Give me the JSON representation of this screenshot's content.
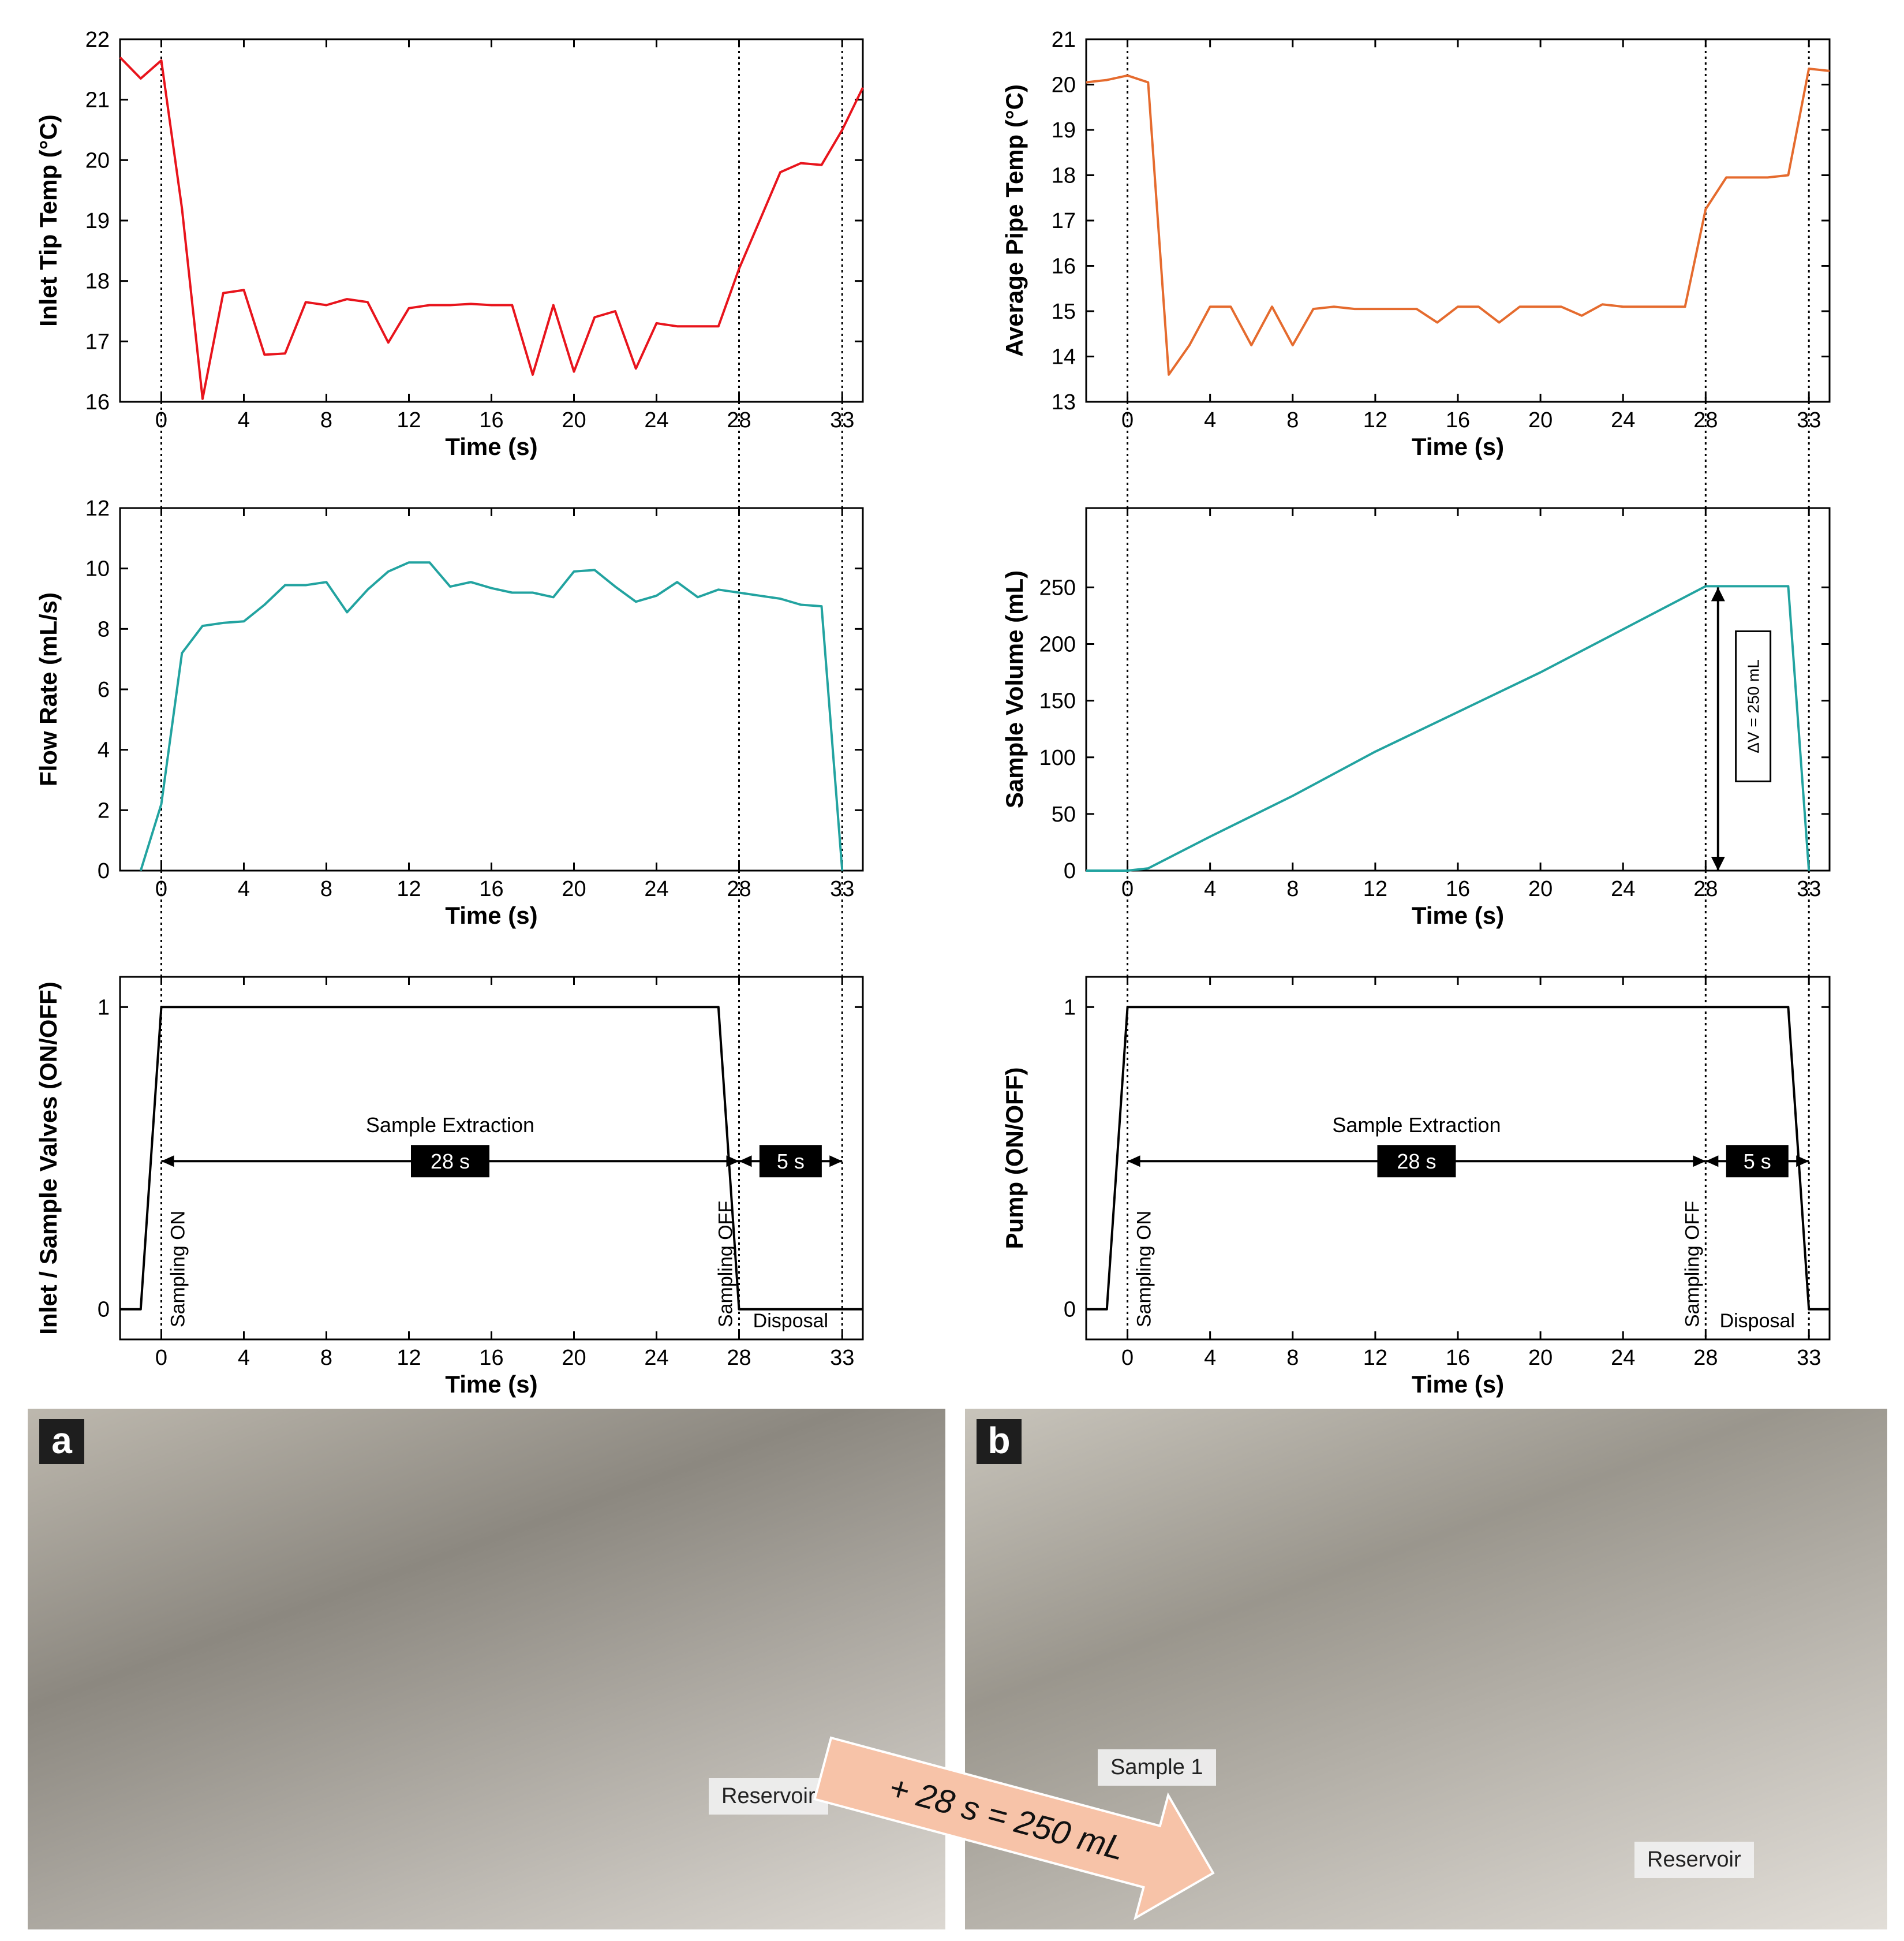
{
  "colors": {
    "inlet_temp": "#e8141c",
    "pipe_temp": "#e56b2e",
    "flow": "#22a3a0",
    "volume": "#22a3a0",
    "valve": "#000000",
    "arrow_fill": "#f7c3a8"
  },
  "chart_data": [
    {
      "id": "inlet-tip-temp",
      "type": "line",
      "xlabel": "Time (s)",
      "ylabel": "Inlet Tip Temp (°C)",
      "xlim": [
        -2,
        34
      ],
      "ylim": [
        16,
        22
      ],
      "xticks": [
        0,
        4,
        8,
        12,
        16,
        20,
        24,
        28,
        33
      ],
      "yticks": [
        16,
        17,
        18,
        19,
        20,
        21,
        22
      ],
      "vlines": [
        0,
        28,
        33
      ],
      "series": [
        {
          "x": [
            -2,
            -1,
            0,
            1,
            2,
            3,
            4,
            5,
            6,
            7,
            8,
            9,
            10,
            11,
            12,
            13,
            14,
            15,
            16,
            17,
            18,
            19,
            20,
            21,
            22,
            23,
            24,
            25,
            26,
            27,
            28,
            29,
            30,
            31,
            32,
            33,
            34
          ],
          "y": [
            21.7,
            21.35,
            21.65,
            19.2,
            16.05,
            17.8,
            17.85,
            16.78,
            16.8,
            17.65,
            17.6,
            17.7,
            17.65,
            16.98,
            17.55,
            17.6,
            17.6,
            17.62,
            17.6,
            17.6,
            16.45,
            17.6,
            16.5,
            17.4,
            17.5,
            16.55,
            17.3,
            17.25,
            17.25,
            17.25,
            18.2,
            19.0,
            19.8,
            19.95,
            19.92,
            20.5,
            21.2
          ]
        }
      ]
    },
    {
      "id": "average-pipe-temp",
      "type": "line",
      "xlabel": "Time (s)",
      "ylabel": "Average Pipe Temp (°C)",
      "xlim": [
        -2,
        34
      ],
      "ylim": [
        13,
        21
      ],
      "xticks": [
        0,
        4,
        8,
        12,
        16,
        20,
        24,
        28,
        33
      ],
      "yticks": [
        13,
        14,
        15,
        16,
        17,
        18,
        19,
        20,
        21
      ],
      "vlines": [
        0,
        28,
        33
      ],
      "series": [
        {
          "x": [
            -2,
            -1,
            0,
            1,
            2,
            3,
            4,
            5,
            6,
            7,
            8,
            9,
            10,
            11,
            12,
            13,
            14,
            15,
            16,
            17,
            18,
            19,
            20,
            21,
            22,
            23,
            24,
            25,
            26,
            27,
            28,
            29,
            30,
            31,
            32,
            33,
            34
          ],
          "y": [
            20.05,
            20.1,
            20.2,
            20.05,
            13.6,
            14.25,
            15.1,
            15.1,
            14.25,
            15.1,
            14.25,
            15.05,
            15.1,
            15.05,
            15.05,
            15.05,
            15.05,
            14.75,
            15.1,
            15.1,
            14.75,
            15.1,
            15.1,
            15.1,
            14.9,
            15.15,
            15.1,
            15.1,
            15.1,
            15.1,
            17.25,
            17.95,
            17.95,
            17.95,
            18.0,
            20.35,
            20.3
          ]
        }
      ]
    },
    {
      "id": "flow-rate",
      "type": "line",
      "xlabel": "Time (s)",
      "ylabel": "Flow Rate (mL/s)",
      "xlim": [
        -2,
        34
      ],
      "ylim": [
        0,
        12
      ],
      "xticks": [
        0,
        4,
        8,
        12,
        16,
        20,
        24,
        28,
        33
      ],
      "yticks": [
        0,
        2,
        4,
        6,
        8,
        10,
        12
      ],
      "vlines": [
        0,
        28,
        33
      ],
      "series": [
        {
          "x": [
            -1,
            0,
            1,
            2,
            3,
            4,
            5,
            6,
            7,
            8,
            9,
            10,
            11,
            12,
            13,
            14,
            15,
            16,
            17,
            18,
            19,
            20,
            21,
            22,
            23,
            24,
            25,
            26,
            27,
            28,
            29,
            30,
            31,
            32,
            33
          ],
          "y": [
            0,
            2.2,
            7.2,
            8.1,
            8.2,
            8.25,
            8.8,
            9.45,
            9.45,
            9.55,
            8.55,
            9.3,
            9.9,
            10.2,
            10.2,
            9.4,
            9.55,
            9.35,
            9.2,
            9.2,
            9.05,
            9.9,
            9.95,
            9.4,
            8.9,
            9.1,
            9.55,
            9.05,
            9.3,
            9.2,
            9.1,
            9.0,
            8.8,
            8.75,
            0
          ]
        }
      ]
    },
    {
      "id": "sample-volume",
      "type": "line",
      "xlabel": "Time (s)",
      "ylabel": "Sample Volume (mL)",
      "xlim": [
        -2,
        34
      ],
      "ylim": [
        0,
        320
      ],
      "xticks": [
        0,
        4,
        8,
        12,
        16,
        20,
        24,
        28,
        33
      ],
      "yticks": [
        0,
        50,
        100,
        150,
        200,
        250
      ],
      "vlines": [
        0,
        28,
        33
      ],
      "annotation": "ΔV = 250 mL",
      "series": [
        {
          "x": [
            -2,
            0,
            1,
            4,
            8,
            12,
            16,
            20,
            24,
            28,
            32,
            33
          ],
          "y": [
            0,
            0,
            2,
            30,
            66,
            105,
            140,
            175,
            213,
            251,
            251,
            0
          ]
        }
      ]
    },
    {
      "id": "inlet-sample-valves",
      "type": "line",
      "xlabel": "Time (s)",
      "ylabel": "Inlet / Sample Valves (ON/OFF)",
      "xlim": [
        -2,
        34
      ],
      "ylim": [
        -0.1,
        1.1
      ],
      "xticks": [
        0,
        4,
        8,
        12,
        16,
        20,
        24,
        28,
        33
      ],
      "yticks": [
        0,
        1
      ],
      "vlines": [
        0,
        28,
        33
      ],
      "labels": {
        "phase": "Sample Extraction",
        "duration": "28 s",
        "disposal_duration": "5 s",
        "on": "Sampling ON",
        "off": "Sampling OFF",
        "disposal": "Disposal"
      },
      "series": [
        {
          "x": [
            -2,
            -1,
            0,
            27,
            28,
            34
          ],
          "y": [
            0,
            0,
            1,
            1,
            0,
            0
          ]
        }
      ]
    },
    {
      "id": "pump",
      "type": "line",
      "xlabel": "Time (s)",
      "ylabel": "Pump (ON/OFF)",
      "xlim": [
        -2,
        34
      ],
      "ylim": [
        -0.1,
        1.1
      ],
      "xticks": [
        0,
        4,
        8,
        12,
        16,
        20,
        24,
        28,
        33
      ],
      "yticks": [
        0,
        1
      ],
      "vlines": [
        0,
        28,
        33
      ],
      "labels": {
        "phase": "Sample Extraction",
        "duration": "28 s",
        "disposal_duration": "5 s",
        "on": "Sampling ON",
        "off": "Sampling OFF",
        "disposal": "Disposal"
      },
      "series": [
        {
          "x": [
            -2,
            -1,
            0,
            32,
            33,
            34
          ],
          "y": [
            0,
            0,
            1,
            1,
            0,
            0
          ]
        }
      ]
    }
  ],
  "photos": {
    "a": {
      "letter": "a",
      "label": "Reservoir"
    },
    "b": {
      "letter": "b",
      "label_sample": "Sample 1",
      "label_reservoir": "Reservoir"
    },
    "arrow_text": "+ 28 s = 250 mL"
  }
}
